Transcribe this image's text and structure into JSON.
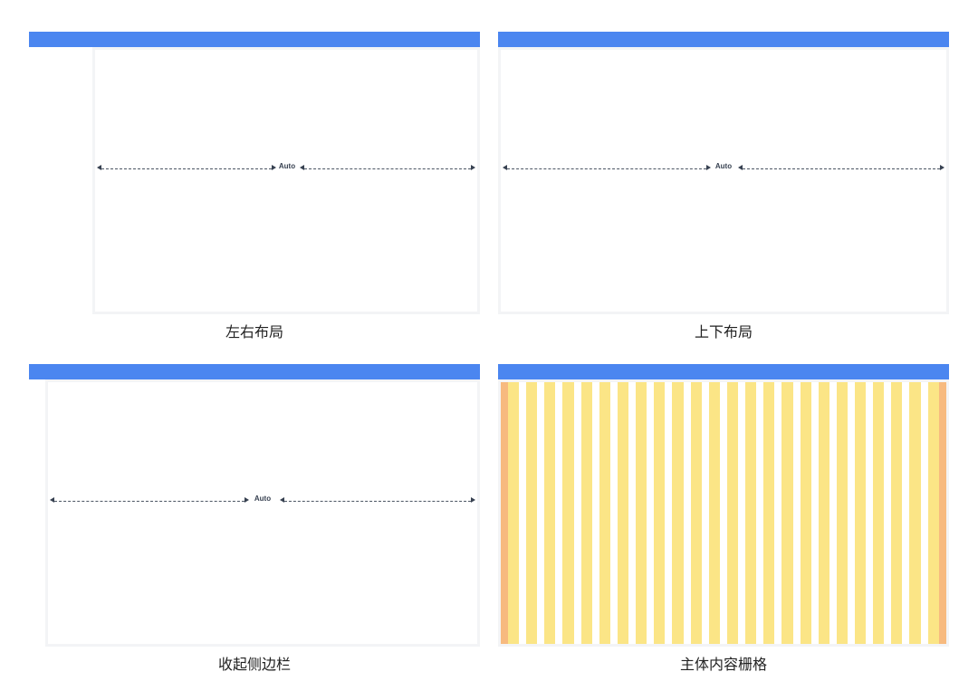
{
  "colors": {
    "header": "#4b86f0",
    "frame": "#f3f4f6",
    "column": "#fbe586",
    "margin": "#f7ba7f"
  },
  "panels": [
    {
      "caption": "左右布局",
      "measure_label": "Auto"
    },
    {
      "caption": "上下布局",
      "measure_label": "Auto"
    },
    {
      "caption": "收起侧边栏",
      "measure_label": "Auto"
    },
    {
      "caption": "主体内容栅格",
      "grid_columns": 24
    }
  ]
}
